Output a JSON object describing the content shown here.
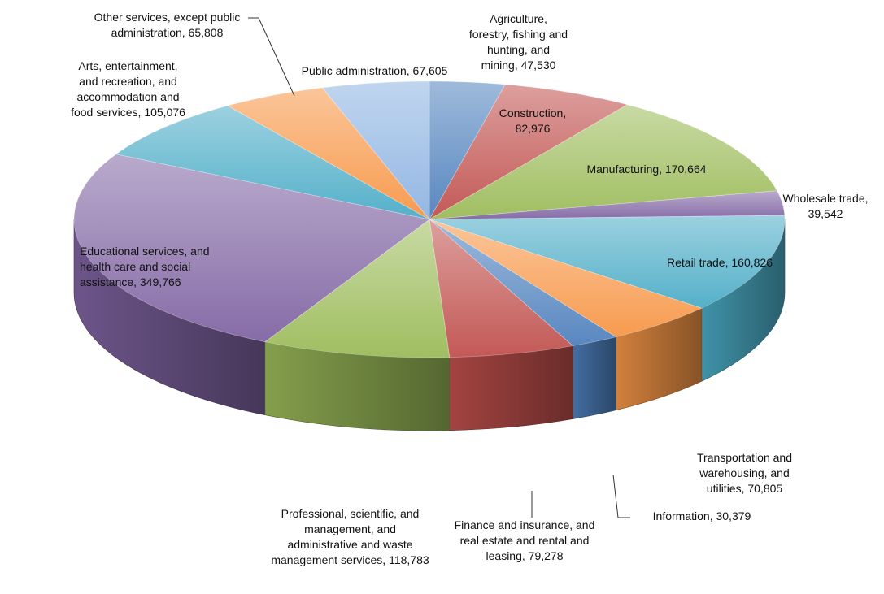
{
  "chart_data": {
    "type": "pie",
    "style": "3d-pie",
    "title": "",
    "legend": "none",
    "start_angle_deg": 90,
    "direction": "clockwise",
    "slices": [
      {
        "category": "Agriculture, forestry, fishing and hunting, and mining",
        "value": 47530,
        "label": "Agriculture,\nforestry, fishing and\nhunting, and\nmining, 47,530",
        "color": "#4f81bd"
      },
      {
        "category": "Construction",
        "value": 82976,
        "label": "Construction,\n82,976",
        "color": "#c0504d"
      },
      {
        "category": "Manufacturing",
        "value": 170664,
        "label": "Manufacturing, 170,664",
        "color": "#9bbb59"
      },
      {
        "category": "Wholesale trade",
        "value": 39542,
        "label": "Wholesale trade,\n39,542",
        "color": "#8064a2"
      },
      {
        "category": "Retail trade",
        "value": 160826,
        "label": "Retail trade, 160,826",
        "color": "#4bacc6"
      },
      {
        "category": "Transportation and warehousing, and utilities",
        "value": 70805,
        "label": "Transportation and\nwarehousing, and\nutilities, 70,805",
        "color": "#f79646"
      },
      {
        "category": "Information",
        "value": 30379,
        "label": "Information, 30,379",
        "color": "#4f81bd"
      },
      {
        "category": "Finance and insurance, and real estate and rental and leasing",
        "value": 79278,
        "label": "Finance and insurance, and\nreal estate and rental and\nleasing, 79,278",
        "color": "#c0504d"
      },
      {
        "category": "Professional, scientific, and management, and administrative and waste management services",
        "value": 118783,
        "label": "Professional, scientific, and\nmanagement, and\nadministrative and waste\nmanagement services, 118,783",
        "color": "#9bbb59"
      },
      {
        "category": "Educational services, and health care and social assistance",
        "value": 349766,
        "label": "Educational services, and\nhealth care and social\nassistance, 349,766",
        "color": "#8064a2"
      },
      {
        "category": "Arts, entertainment, and recreation, and accommodation and food services",
        "value": 105076,
        "label": "Arts, entertainment,\nand recreation, and\naccommodation and\nfood services, 105,076",
        "color": "#4bacc6"
      },
      {
        "category": "Other services, except public administration",
        "value": 65808,
        "label": "Other services, except public\nadministration, 65,808",
        "color": "#f79646"
      },
      {
        "category": "Public administration",
        "value": 67605,
        "label": "Public administration, 67,605",
        "color": "#8db3e2"
      }
    ]
  }
}
